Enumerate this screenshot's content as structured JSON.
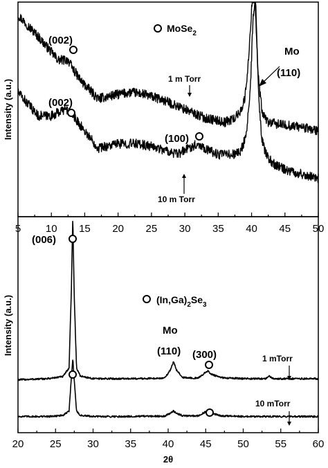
{
  "chart_data": [
    {
      "type": "line",
      "xlabel": "",
      "ylabel": "Intensity (a.u.)",
      "xlim": [
        5,
        50
      ],
      "xticks": [
        5,
        10,
        15,
        20,
        25,
        30,
        35,
        40,
        45,
        50
      ],
      "legend": {
        "symbol": "open-circle",
        "text_main": "MoSe",
        "text_sub": "2",
        "placement": "top-center"
      },
      "series": [
        {
          "name": "1 m Torr",
          "x": [
            5,
            8,
            11,
            12.5,
            13.2,
            14.5,
            17,
            20,
            22,
            24,
            27,
            30,
            33,
            36,
            37.5,
            38.3,
            39,
            39.6,
            40.1,
            40.5,
            41,
            41.6,
            42.5,
            44,
            47,
            50
          ],
          "y": [
            0.94,
            0.84,
            0.73,
            0.73,
            0.69,
            0.63,
            0.55,
            0.57,
            0.58,
            0.57,
            0.54,
            0.5,
            0.46,
            0.44,
            0.46,
            0.49,
            0.55,
            0.75,
            1.02,
            1.02,
            0.65,
            0.48,
            0.44,
            0.43,
            0.42,
            0.4
          ],
          "noise": 0.022
        },
        {
          "name": "10 m Torr",
          "x": [
            5,
            8,
            10,
            12,
            12.8,
            14,
            17,
            20,
            23,
            26,
            29,
            30.5,
            32,
            33.5,
            35,
            37,
            38.3,
            39.2,
            39.8,
            40.2,
            40.6,
            41,
            41.5,
            42.3,
            43.5,
            46,
            50
          ],
          "y": [
            0.58,
            0.47,
            0.47,
            0.5,
            0.49,
            0.44,
            0.32,
            0.34,
            0.34,
            0.32,
            0.29,
            0.32,
            0.34,
            0.31,
            0.29,
            0.29,
            0.3,
            0.38,
            0.58,
            0.91,
            1.02,
            0.6,
            0.36,
            0.28,
            0.24,
            0.21,
            0.18
          ],
          "noise": 0.022
        }
      ],
      "annotations": {
        "peak_002_top": "(002)",
        "peak_002_bottom": "(002)",
        "peak_100": "(100)",
        "mo_label": "Mo",
        "mo_index": "(110)",
        "sample_1": "1 m Torr",
        "sample_10": "10 m Torr"
      }
    },
    {
      "type": "line",
      "xlabel": "2θ",
      "ylabel": "Intensity (a.u.)",
      "xlim": [
        20,
        60
      ],
      "xticks": [
        20,
        25,
        30,
        35,
        40,
        45,
        50,
        55,
        60
      ],
      "legend": {
        "symbol": "open-circle",
        "text_main": "(In,Ga)",
        "text_sub": "2",
        "text_mid": "Se",
        "text_sub2": "3",
        "placement": "center"
      },
      "series": [
        {
          "name": "1 mTorr",
          "x": [
            20,
            24,
            26,
            26.8,
            27.1,
            27.3,
            27.5,
            27.8,
            28.3,
            30,
            35,
            39.5,
            40.3,
            40.7,
            41.1,
            42,
            44,
            44.8,
            45.3,
            45.8,
            47,
            50,
            53,
            53.5,
            54,
            57,
            60
          ],
          "y": [
            0.245,
            0.25,
            0.26,
            0.3,
            0.65,
            1.0,
            0.62,
            0.3,
            0.262,
            0.25,
            0.25,
            0.252,
            0.29,
            0.33,
            0.29,
            0.255,
            0.252,
            0.275,
            0.285,
            0.27,
            0.255,
            0.25,
            0.25,
            0.262,
            0.25,
            0.25,
            0.25
          ],
          "noise": 0.004
        },
        {
          "name": "10 mTorr",
          "x": [
            20,
            24,
            26,
            26.8,
            27.1,
            27.3,
            27.5,
            27.8,
            28.3,
            30,
            35,
            39.5,
            40.3,
            40.7,
            41.1,
            42,
            44,
            44.8,
            45.3,
            45.8,
            47,
            50,
            55,
            60
          ],
          "y": [
            0.075,
            0.075,
            0.08,
            0.1,
            0.25,
            0.345,
            0.24,
            0.1,
            0.08,
            0.075,
            0.075,
            0.077,
            0.09,
            0.1,
            0.09,
            0.078,
            0.078,
            0.093,
            0.1,
            0.09,
            0.078,
            0.075,
            0.075,
            0.075
          ],
          "noise": 0.004
        }
      ],
      "annotations": {
        "peak_006": "(006)",
        "mo_label": "Mo",
        "mo_index": "(110)",
        "peak_300": "(300)",
        "sample_1": "1 mTorr",
        "sample_10": "10 mTorr"
      }
    }
  ]
}
